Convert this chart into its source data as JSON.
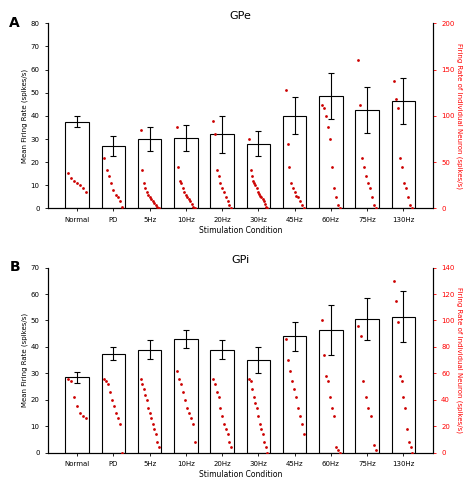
{
  "categories": [
    "Normal",
    "PD",
    "5Hz",
    "10Hz",
    "20Hz",
    "30Hz",
    "45Hz",
    "60Hz",
    "75Hz",
    "130Hz"
  ],
  "GPe": {
    "means": [
      37.5,
      27.0,
      30.0,
      30.5,
      32.0,
      28.0,
      40.0,
      48.5,
      42.5,
      46.5
    ],
    "errors": [
      2.5,
      4.5,
      5.0,
      5.5,
      8.0,
      5.5,
      8.0,
      10.0,
      10.0,
      10.0
    ],
    "title": "GPe",
    "ylabel_left": "Mean Firing Rate (spikes/s)",
    "ylabel_right": "Firing Rate of Individual Neuron (spikes/s)",
    "ylim_left": [
      0,
      80
    ],
    "ylim_right": [
      0,
      200
    ],
    "yticks_left": [
      0,
      10,
      20,
      30,
      40,
      50,
      60,
      70,
      80
    ],
    "yticks_right": [
      0,
      50,
      100,
      150,
      200
    ],
    "dots": [
      [
        38,
        33,
        30,
        28,
        25,
        22,
        18
      ],
      [
        55,
        42,
        35,
        28,
        20,
        15,
        12,
        8,
        2
      ],
      [
        85,
        42,
        28,
        22,
        18,
        15,
        12,
        10,
        8,
        6,
        4,
        2,
        0
      ],
      [
        88,
        45,
        30,
        28,
        22,
        18,
        15,
        12,
        10,
        8,
        5,
        2,
        0
      ],
      [
        95,
        80,
        42,
        35,
        28,
        22,
        18,
        12,
        8,
        4,
        0
      ],
      [
        75,
        42,
        35,
        30,
        28,
        25,
        22,
        18,
        16,
        14,
        12,
        10,
        8,
        5,
        2,
        0
      ],
      [
        128,
        70,
        45,
        28,
        22,
        18,
        14,
        12,
        8,
        4,
        0
      ],
      [
        112,
        108,
        100,
        88,
        75,
        45,
        22,
        12,
        4,
        0
      ],
      [
        160,
        112,
        55,
        45,
        35,
        28,
        22,
        12,
        4,
        0
      ],
      [
        138,
        118,
        108,
        55,
        45,
        28,
        22,
        12,
        4,
        0
      ]
    ]
  },
  "GPi": {
    "means": [
      28.5,
      37.5,
      39.0,
      43.0,
      39.0,
      35.0,
      44.0,
      46.5,
      50.5,
      51.5
    ],
    "errors": [
      2.0,
      2.5,
      3.5,
      3.5,
      3.5,
      5.0,
      5.5,
      9.5,
      8.0,
      9.5
    ],
    "title": "GPi",
    "ylabel_left": "Mean Firing Rate (spikes/s)",
    "ylabel_right": "Firing Rate of Individual Neuron (spikes/s)",
    "ylim_left": [
      0,
      70
    ],
    "ylim_right": [
      0,
      140
    ],
    "yticks_left": [
      0,
      10,
      20,
      30,
      40,
      50,
      60,
      70
    ],
    "yticks_right": [
      0,
      20,
      40,
      60,
      80,
      100,
      120,
      140
    ],
    "dots": [
      [
        56,
        54,
        42,
        35,
        30,
        28,
        26
      ],
      [
        56,
        54,
        52,
        46,
        40,
        35,
        30,
        26,
        22,
        0
      ],
      [
        56,
        52,
        48,
        44,
        40,
        34,
        30,
        26,
        22,
        18,
        14,
        8,
        4
      ],
      [
        62,
        56,
        52,
        46,
        40,
        34,
        30,
        26,
        22,
        8
      ],
      [
        56,
        52,
        46,
        42,
        34,
        28,
        22,
        18,
        14,
        8,
        4
      ],
      [
        56,
        54,
        48,
        42,
        38,
        34,
        28,
        22,
        18,
        14,
        8,
        4,
        0
      ],
      [
        86,
        70,
        62,
        54,
        48,
        42,
        34,
        28,
        22,
        14
      ],
      [
        100,
        74,
        58,
        54,
        42,
        34,
        28,
        4,
        2,
        0
      ],
      [
        96,
        88,
        54,
        42,
        34,
        28,
        6,
        2
      ],
      [
        130,
        115,
        99,
        58,
        54,
        42,
        34,
        18,
        8,
        4,
        0
      ]
    ]
  },
  "xlabel": "Stimulation Condition",
  "bar_color": "white",
  "bar_edge_color": "black",
  "dot_color": "#cc0000",
  "error_color": "black",
  "background_color": "white"
}
